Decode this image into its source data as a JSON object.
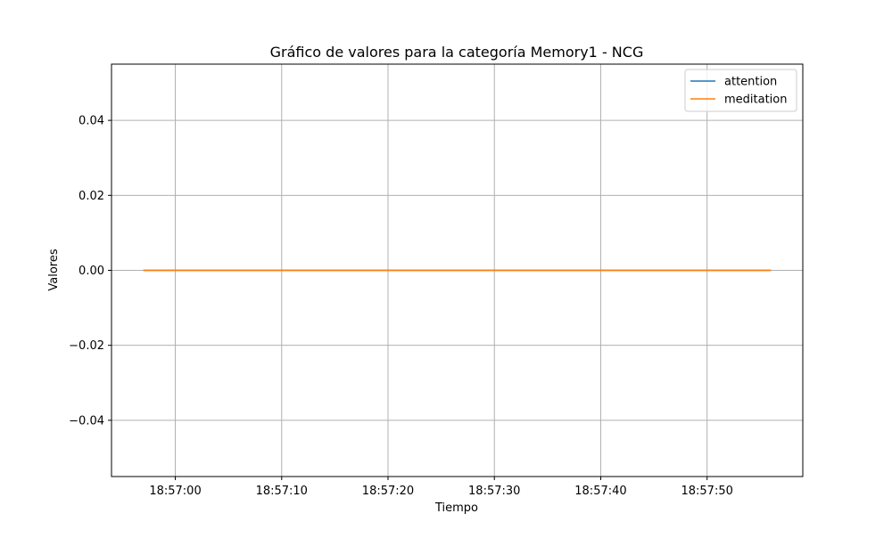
{
  "chart_data": {
    "type": "line",
    "title": "Gráfico de valores para la categoría Memory1 - NCG",
    "xlabel": "Tiempo",
    "ylabel": "Valores",
    "x_ticks": [
      "18:57:00",
      "18:57:10",
      "18:57:20",
      "18:57:30",
      "18:57:40",
      "18:57:50"
    ],
    "y_ticks": [
      "0.04",
      "0.02",
      "0.00",
      "−0.02",
      "−0.04"
    ],
    "x": [
      "18:56:57",
      "18:57:56"
    ],
    "xlim": [
      "18:56:54",
      "18:57:59"
    ],
    "ylim": [
      -0.055,
      0.055
    ],
    "grid": true,
    "legend_position": "upper right",
    "series": [
      {
        "name": "attention",
        "color": "#1f77b4",
        "values": [
          0,
          0
        ]
      },
      {
        "name": "meditation",
        "color": "#ff7f0e",
        "values": [
          0,
          0
        ]
      }
    ]
  }
}
